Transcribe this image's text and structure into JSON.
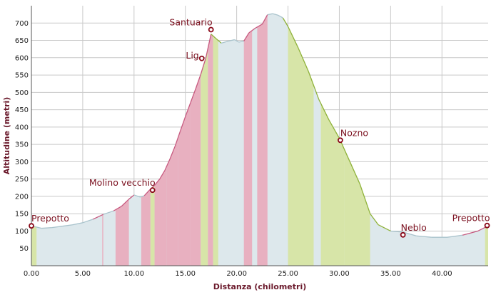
{
  "chart_data": {
    "type": "area",
    "title": "",
    "xlabel": "Distanza (chilometri)",
    "ylabel": "Altitudine (metri)",
    "xlim": [
      0,
      44.5
    ],
    "ylim": [
      0,
      750
    ],
    "x_ticks": [
      "0.00",
      "5.00",
      "10.00",
      "15.00",
      "20.00",
      "25.00",
      "30.00",
      "35.00",
      "40.00"
    ],
    "y_ticks": [
      "50",
      "100",
      "150",
      "200",
      "250",
      "300",
      "350",
      "400",
      "450",
      "500",
      "550",
      "600",
      "650",
      "700"
    ],
    "grid": true,
    "profile": [
      [
        0,
        115
      ],
      [
        1,
        108
      ],
      [
        2,
        110
      ],
      [
        3,
        114
      ],
      [
        4,
        118
      ],
      [
        5,
        124
      ],
      [
        6,
        134
      ],
      [
        7,
        148
      ],
      [
        8,
        158
      ],
      [
        8.8,
        172
      ],
      [
        9.5,
        192
      ],
      [
        10,
        204
      ],
      [
        10.6,
        198
      ],
      [
        11,
        202
      ],
      [
        11.5,
        218
      ],
      [
        12,
        232
      ],
      [
        12.5,
        250
      ],
      [
        13,
        275
      ],
      [
        13.5,
        308
      ],
      [
        14,
        345
      ],
      [
        14.5,
        388
      ],
      [
        15,
        430
      ],
      [
        15.5,
        470
      ],
      [
        16,
        510
      ],
      [
        16.5,
        552
      ],
      [
        17,
        600
      ],
      [
        17.5,
        668
      ],
      [
        18,
        655
      ],
      [
        18.5,
        642
      ],
      [
        19.2,
        648
      ],
      [
        19.8,
        652
      ],
      [
        20.2,
        645
      ],
      [
        20.7,
        648
      ],
      [
        21.2,
        672
      ],
      [
        21.8,
        685
      ],
      [
        22.5,
        697
      ],
      [
        23,
        724
      ],
      [
        23.5,
        727
      ],
      [
        24,
        723
      ],
      [
        24.5,
        715
      ],
      [
        25,
        690
      ],
      [
        26,
        628
      ],
      [
        27,
        560
      ],
      [
        28,
        480
      ],
      [
        29,
        420
      ],
      [
        30,
        368
      ],
      [
        31,
        302
      ],
      [
        32,
        236
      ],
      [
        33,
        150
      ],
      [
        33.8,
        118
      ],
      [
        35,
        100
      ],
      [
        36.2,
        97
      ],
      [
        37.5,
        86
      ],
      [
        39,
        82
      ],
      [
        40.5,
        82
      ],
      [
        42,
        88
      ],
      [
        43.5,
        100
      ],
      [
        44.5,
        115
      ]
    ],
    "colored_bands": [
      {
        "x": [
          0,
          0.5
        ],
        "color": "#d7e5a8"
      },
      {
        "x": [
          6.9,
          7.0
        ],
        "color": "#e8b0c0"
      },
      {
        "x": [
          8.2,
          9.5
        ],
        "color": "#e8b0c0"
      },
      {
        "x": [
          10.7,
          11.6
        ],
        "color": "#e8b0c0"
      },
      {
        "x": [
          11.6,
          12.0
        ],
        "color": "#d7e5a8"
      },
      {
        "x": [
          12.0,
          13.2
        ],
        "color": "#e8b0c0"
      },
      {
        "x": [
          13.2,
          14.3
        ],
        "color": "#e8b0c0"
      },
      {
        "x": [
          14.3,
          15.5
        ],
        "color": "#e8b0c0"
      },
      {
        "x": [
          15.5,
          16.5
        ],
        "color": "#e8b0c0"
      },
      {
        "x": [
          16.5,
          17.2
        ],
        "color": "#d7e5a8"
      },
      {
        "x": [
          17.2,
          17.7
        ],
        "color": "#e8b0c0"
      },
      {
        "x": [
          17.7,
          18.2
        ],
        "color": "#d7e5a8"
      },
      {
        "x": [
          20.7,
          21.5
        ],
        "color": "#e8b0c0"
      },
      {
        "x": [
          22.0,
          23.0
        ],
        "color": "#e8b0c0"
      },
      {
        "x": [
          25.0,
          27.5
        ],
        "color": "#d7e5a8"
      },
      {
        "x": [
          28.2,
          30.5
        ],
        "color": "#d7e5a8"
      },
      {
        "x": [
          30.5,
          33.0
        ],
        "color": "#d7e5a8"
      },
      {
        "x": [
          44.2,
          44.5
        ],
        "color": "#d7e5a8"
      }
    ],
    "waypoints": [
      {
        "label": "Prepotto",
        "x": 0.0,
        "y": 115
      },
      {
        "label": "Molino vecchio",
        "x": 11.8,
        "y": 218
      },
      {
        "label": "Lig",
        "x": 16.6,
        "y": 598
      },
      {
        "label": "Santuario",
        "x": 17.5,
        "y": 681
      },
      {
        "label": "Nozno",
        "x": 30.1,
        "y": 362
      },
      {
        "label": "Neblo",
        "x": 36.2,
        "y": 89
      },
      {
        "label": "Prepotto",
        "x": 44.4,
        "y": 116
      }
    ],
    "colors": {
      "fill": "#dde8ec",
      "line_green": "#8fb23a",
      "line_pink": "#c75a80",
      "grid": "#c9c9c9",
      "marker": "#8b0a1a"
    }
  }
}
